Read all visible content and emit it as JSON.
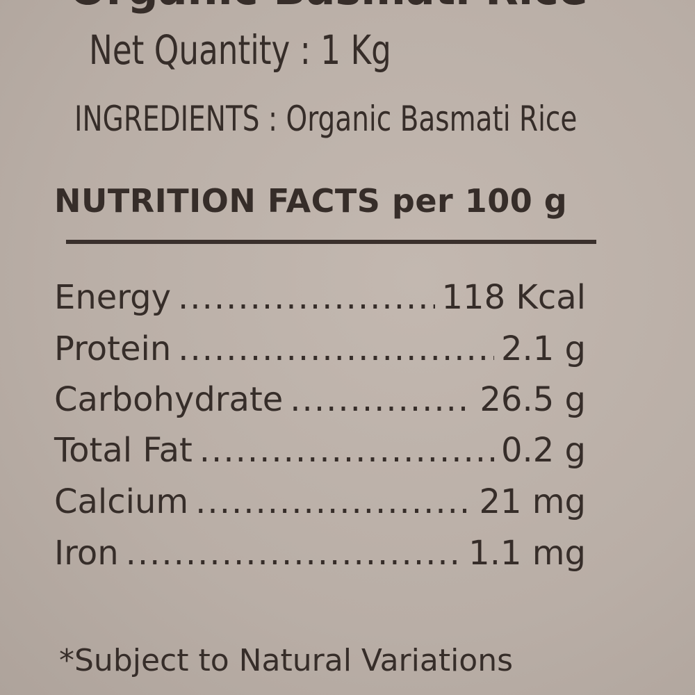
{
  "product_name": "Organic Basmati Rice",
  "net_quantity": "Net Quantity : 1 Kg",
  "ingredients": "INGREDIENTS : Organic Basmati Rice",
  "nutrition_heading": "NUTRITION FACTS per 100 g",
  "nutrients": [
    {
      "label": "Energy",
      "value": "118 Kcal"
    },
    {
      "label": "Protein",
      "value": "2.1 g"
    },
    {
      "label": "Carbohydrate",
      "value": "26.5 g"
    },
    {
      "label": "Total Fat",
      "value": "0.2 g"
    },
    {
      "label": "Calcium",
      "value": "21 mg"
    },
    {
      "label": "Iron",
      "value": "1.1 mg"
    }
  ],
  "footnote": "*Subject to Natural Variations",
  "colors": {
    "paper": "#bcb1a9",
    "ink": "#362d29"
  }
}
